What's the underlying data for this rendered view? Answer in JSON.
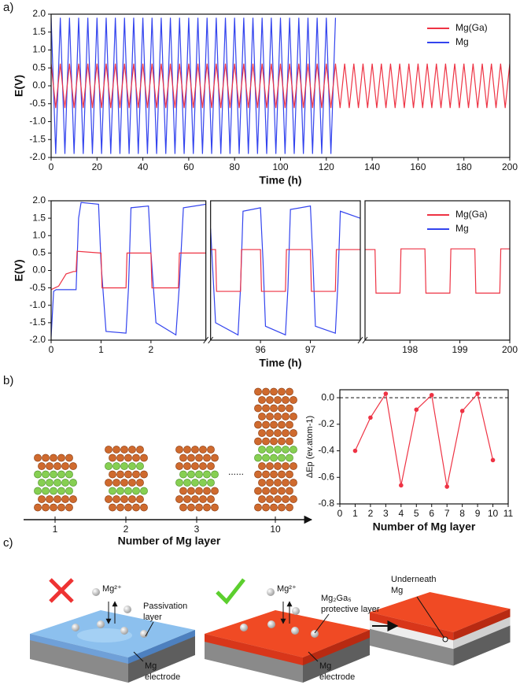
{
  "panel_labels": [
    "a)",
    "b)",
    "c)"
  ],
  "chart_data": [
    {
      "type": "line",
      "xlabel": "Time (h)",
      "ylabel": "E(V)",
      "legend": "upper right",
      "xlim": [
        0,
        200
      ],
      "xticks": [
        0,
        20,
        40,
        60,
        80,
        100,
        120,
        140,
        160,
        180,
        200
      ],
      "ylim": [
        -2,
        2
      ],
      "yticks": [
        {
          "value": -2,
          "label": "-2.0"
        },
        {
          "value": -1.5,
          "label": "-1.5"
        },
        {
          "value": -1,
          "label": "-1.0"
        },
        {
          "value": -0.5,
          "label": "-0.5"
        },
        {
          "value": 0,
          "label": "0.0"
        },
        {
          "value": 0.5,
          "label": "0.5"
        },
        {
          "value": 1,
          "label": "1.0"
        },
        {
          "value": 1.5,
          "label": "1.5"
        },
        {
          "value": 2,
          "label": "2.0"
        }
      ],
      "x": [
        0,
        2,
        4,
        6,
        8,
        10,
        12,
        14,
        16,
        18,
        20,
        22,
        24,
        26,
        28,
        30,
        32,
        34,
        36,
        38,
        40,
        42,
        44,
        46,
        48,
        50,
        52,
        54,
        56,
        58,
        60,
        62,
        64,
        66,
        68,
        70,
        72,
        74,
        76,
        78,
        80,
        82,
        84,
        86,
        88,
        90,
        92,
        94,
        96,
        98,
        100,
        102,
        104,
        106,
        108,
        110,
        112,
        114,
        116,
        118,
        120,
        122,
        124,
        126,
        128,
        130,
        132,
        134,
        136,
        138,
        140,
        142,
        144,
        146,
        148,
        150,
        152,
        154,
        156,
        158,
        160,
        162,
        164,
        166,
        168,
        170,
        172,
        174,
        176,
        178,
        180,
        182,
        184,
        186,
        188,
        190,
        192,
        194,
        196,
        198,
        200
      ],
      "series": [
        {
          "name": "Mg(Ga)",
          "color": "#ee3344",
          "values": [
            0.62,
            -0.62,
            0.62,
            -0.62,
            0.62,
            -0.62,
            0.62,
            -0.62,
            0.62,
            -0.62,
            0.62,
            -0.62,
            0.62,
            -0.62,
            0.62,
            -0.62,
            0.62,
            -0.62,
            0.62,
            -0.62,
            0.62,
            -0.62,
            0.62,
            -0.62,
            0.62,
            -0.62,
            0.62,
            -0.62,
            0.62,
            -0.62,
            0.62,
            -0.62,
            0.62,
            -0.62,
            0.62,
            -0.62,
            0.62,
            -0.62,
            0.62,
            -0.62,
            0.62,
            -0.62,
            0.62,
            -0.62,
            0.62,
            -0.62,
            0.62,
            -0.62,
            0.62,
            -0.62,
            0.62,
            -0.62,
            0.62,
            -0.62,
            0.62,
            -0.62,
            0.62,
            -0.62,
            0.62,
            -0.62,
            0.62,
            -0.62,
            0.62,
            -0.62,
            0.62,
            -0.62,
            0.62,
            -0.62,
            0.62,
            -0.62,
            0.62,
            -0.62,
            0.62,
            -0.62,
            0.62,
            -0.62,
            0.62,
            -0.62,
            0.62,
            -0.62,
            0.62,
            -0.62,
            0.62,
            -0.62,
            0.62,
            -0.62,
            0.62,
            -0.62,
            0.62,
            -0.62,
            0.62,
            -0.62,
            0.62,
            -0.62,
            0.62,
            -0.62,
            0.62,
            -0.62,
            0.62,
            -0.62,
            0.62
          ]
        },
        {
          "name": "Mg",
          "color": "#3344ee",
          "values": [
            1.9,
            -1.9,
            1.9,
            -1.9,
            1.9,
            -1.9,
            1.9,
            -1.9,
            1.9,
            -1.9,
            1.9,
            -1.9,
            1.9,
            -1.9,
            1.9,
            -1.9,
            1.9,
            -1.9,
            1.9,
            -1.9,
            1.9,
            -1.9,
            1.9,
            -1.9,
            1.9,
            -1.9,
            1.9,
            -1.9,
            1.9,
            -1.9,
            1.9,
            -1.9,
            1.9,
            -1.9,
            1.9,
            -1.9,
            1.9,
            -1.9,
            1.9,
            -1.9,
            1.9,
            -1.9,
            1.9,
            -1.9,
            1.9,
            -1.9,
            1.9,
            -1.9,
            1.9,
            -1.9,
            1.9,
            -1.9,
            1.9,
            -1.9,
            1.9,
            -1.9,
            1.9,
            -1.9,
            1.9,
            -1.9,
            1.9,
            -1.9,
            1.9,
            null,
            null,
            null,
            null,
            null,
            null,
            null,
            null,
            null,
            null,
            null,
            null,
            null,
            null,
            null,
            null,
            null,
            null,
            null,
            null,
            null,
            null,
            null,
            null,
            null,
            null,
            null,
            null,
            null,
            null,
            null,
            null,
            null,
            null,
            null,
            null,
            null,
            null
          ]
        }
      ]
    },
    {
      "type": "line",
      "xlabel": "Time (h)",
      "ylabel": "E(V)",
      "legend": "upper right",
      "x_segments": [
        [
          0,
          3.1
        ],
        [
          95,
          98
        ],
        [
          197.1,
          200
        ]
      ],
      "xticks": [
        0,
        1,
        2,
        96,
        97,
        198,
        199,
        200
      ],
      "ylim": [
        -2,
        2
      ],
      "yticks": [
        {
          "value": -2,
          "label": "-2.0"
        },
        {
          "value": -1.5,
          "label": "-1.5"
        },
        {
          "value": -1,
          "label": "-1.0"
        },
        {
          "value": -0.5,
          "label": "-0.5"
        },
        {
          "value": 0,
          "label": "0.0"
        },
        {
          "value": 0.5,
          "label": "0.5"
        },
        {
          "value": 1,
          "label": "1.0"
        },
        {
          "value": 1.5,
          "label": "1.5"
        },
        {
          "value": 2,
          "label": "2.0"
        }
      ],
      "series": [
        {
          "name": "Mg(Ga)",
          "color": "#ee3344",
          "x": [
            0,
            0.15,
            0.3,
            0.45,
            0.5,
            0.52,
            1.0,
            1.02,
            1.5,
            1.52,
            2.0,
            2.02,
            2.55,
            2.57,
            3.1,
            null,
            95,
            95.1,
            95.12,
            95.6,
            95.62,
            96.0,
            96.02,
            96.5,
            96.52,
            97.0,
            97.02,
            97.5,
            97.52,
            98,
            null,
            197.1,
            197.3,
            197.32,
            197.8,
            197.82,
            198.3,
            198.32,
            198.8,
            198.82,
            199.3,
            199.32,
            199.8,
            199.82,
            200
          ],
          "values": [
            -0.55,
            -0.45,
            -0.1,
            -0.03,
            -0.03,
            0.55,
            0.5,
            -0.5,
            -0.5,
            0.5,
            0.5,
            -0.5,
            -0.5,
            0.5,
            0.5,
            null,
            0.6,
            0.6,
            -0.6,
            -0.6,
            0.6,
            0.6,
            -0.6,
            -0.6,
            0.6,
            0.6,
            -0.6,
            -0.6,
            0.6,
            0.6,
            null,
            0.6,
            0.6,
            -0.65,
            -0.65,
            0.62,
            0.62,
            -0.65,
            -0.65,
            0.62,
            0.62,
            -0.65,
            -0.65,
            0.62,
            0.62
          ]
        },
        {
          "name": "Mg",
          "color": "#3344ee",
          "x": [
            0,
            0.05,
            0.1,
            0.5,
            0.55,
            0.6,
            0.95,
            1.0,
            1.1,
            1.5,
            1.55,
            1.6,
            1.95,
            2.0,
            2.1,
            2.5,
            2.57,
            2.65,
            3.1,
            null,
            95,
            95.1,
            95.55,
            95.6,
            95.65,
            96.0,
            96.05,
            96.1,
            96.5,
            96.55,
            96.6,
            97.0,
            97.05,
            97.1,
            97.5,
            97.55,
            97.6,
            98
          ],
          "values": [
            -1.9,
            -0.6,
            -0.55,
            -0.55,
            1.5,
            1.95,
            1.9,
            0.2,
            -1.75,
            -1.8,
            -0.5,
            1.8,
            1.85,
            0.5,
            -1.5,
            -1.85,
            -0.4,
            1.8,
            1.9,
            null,
            1.2,
            -1.5,
            -1.85,
            -0.5,
            1.7,
            1.8,
            0.3,
            -1.6,
            -1.85,
            -0.5,
            1.75,
            1.85,
            0.3,
            -1.6,
            -1.8,
            -0.4,
            1.7,
            1.5
          ]
        }
      ]
    },
    {
      "type": "line",
      "xlabel": "Number of Mg layer",
      "ylabel": "ΔEp (ev.atom-1)",
      "color": "#ee3344",
      "markers": true,
      "xlim": [
        0,
        11
      ],
      "xticks": [
        0,
        1,
        2,
        3,
        4,
        5,
        6,
        7,
        8,
        9,
        10,
        11
      ],
      "ylim": [
        -0.8,
        0.06
      ],
      "yticks": [
        -0.8,
        -0.6,
        -0.4,
        -0.2,
        {
          "value": 0,
          "label": "0.0"
        }
      ],
      "hline": 0,
      "x": [
        1,
        2,
        3,
        4,
        5,
        6,
        7,
        8,
        9,
        10
      ],
      "values": [
        -0.4,
        -0.15,
        0.03,
        -0.66,
        -0.09,
        0.02,
        -0.67,
        -0.1,
        0.03,
        -0.47
      ]
    }
  ],
  "structures": {
    "labels": [
      "1",
      "2",
      "3",
      "10"
    ],
    "ellipsis": "......",
    "xlabel": "Number of Mg layer"
  },
  "schematic": {
    "ion": "Mg²⁺",
    "passivation": [
      "Passivation",
      "layer"
    ],
    "electrode": [
      "Mg",
      "electrode"
    ],
    "protective": [
      "Mg₂Ga₅",
      "protective layer"
    ],
    "underneath": [
      "Underneath",
      "Mg"
    ]
  }
}
